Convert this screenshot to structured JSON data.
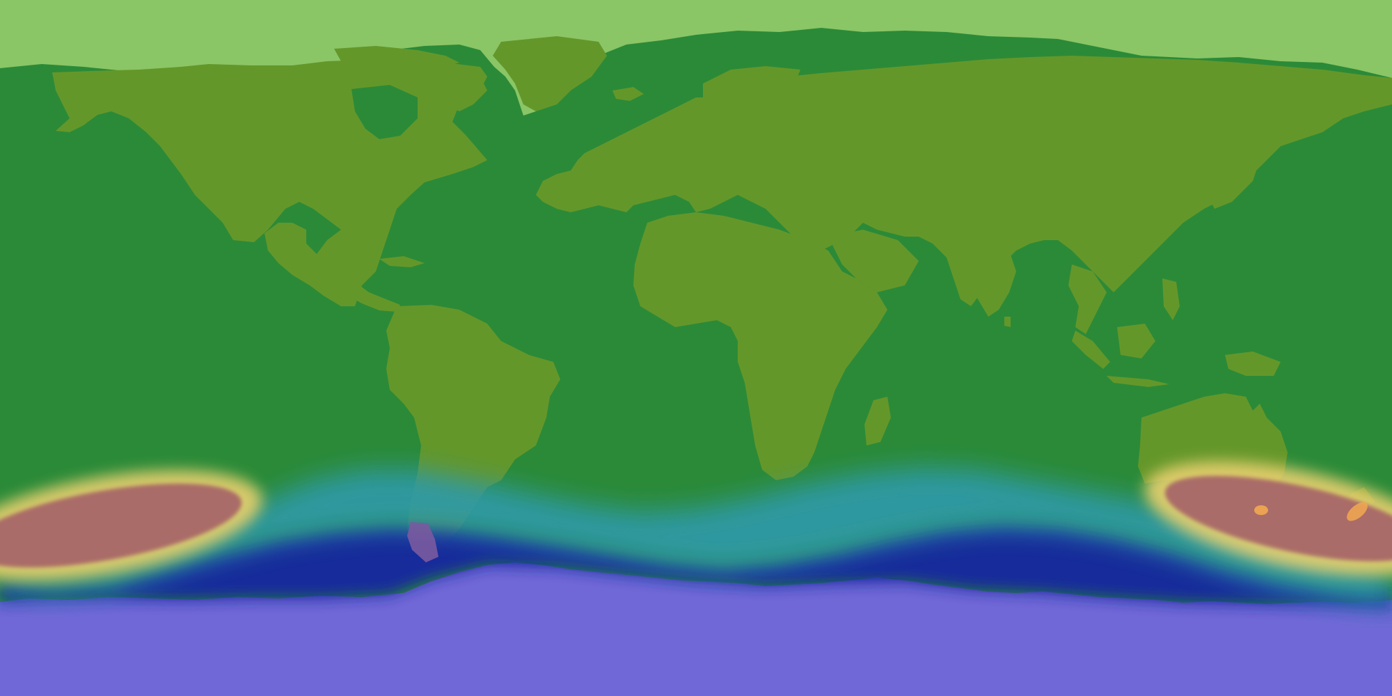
{
  "map": {
    "projection": "equirectangular",
    "legend": "none",
    "colors": {
      "ocean": "#2b8a38",
      "land": "#64972a",
      "arctic_overlay": "#8ac566",
      "antarctic": "#7068d6",
      "deep_band": "#1428a0",
      "teal_band": "#2e9aa8",
      "hotspot_core": "#a86868",
      "hotspot_edge": "#e8d070",
      "hotspot_glow": "#f2a850"
    },
    "bands": [
      {
        "name": "polar-ice-cap",
        "value_class": "lowest"
      },
      {
        "name": "deep-blue-band",
        "value_class": "low"
      },
      {
        "name": "teal-band",
        "value_class": "medium"
      },
      {
        "name": "hotspot-pacific-west",
        "value_class": "highest"
      },
      {
        "name": "hotspot-australia-south",
        "value_class": "highest"
      }
    ]
  }
}
